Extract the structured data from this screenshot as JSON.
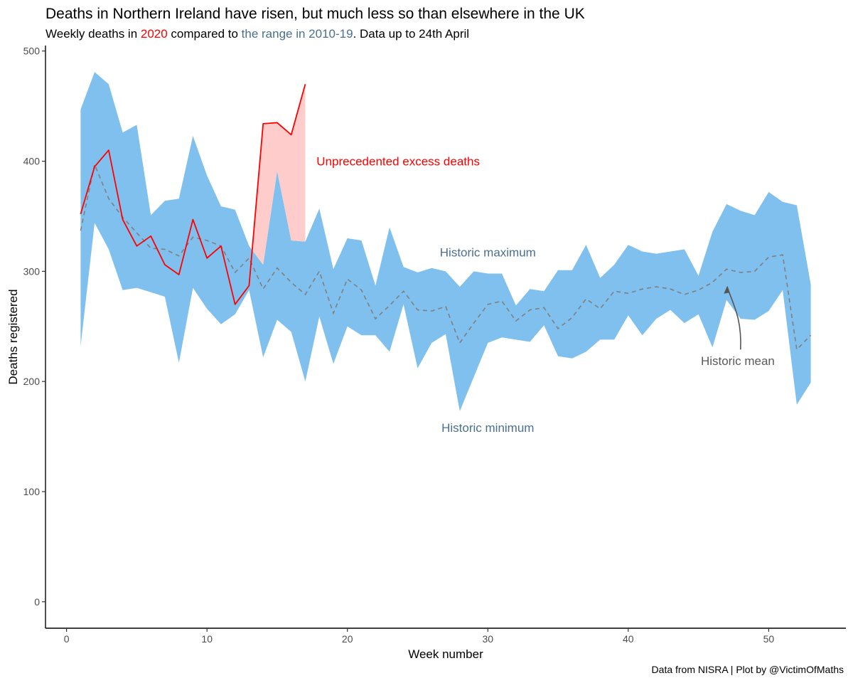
{
  "header": {
    "title": "Deaths in Northern Ireland have risen, but much less so than elsewhere in the UK",
    "subtitle_pre": "Weekly deaths in ",
    "subtitle_year": "2020",
    "subtitle_mid": " compared to ",
    "subtitle_range": "the range in 2010-19",
    "subtitle_post": ". Data up to 24th April"
  },
  "caption": "Data from NISRA | Plot by @VictimOfMaths",
  "colors": {
    "year_2020": "#ff0000",
    "range_text": "#4a6f8f",
    "band": "#80c0ee",
    "excess": "#ffcccc",
    "mean_line": "#7f7f7f",
    "annotation_grey": "#595959"
  },
  "chart_data": {
    "type": "area",
    "title": "Deaths in Northern Ireland have risen, but much less so than elsewhere in the UK",
    "xlabel": "Week number",
    "ylabel": "Deaths registered",
    "xlim": [
      -1.5,
      55.5
    ],
    "ylim": [
      -24,
      505
    ],
    "x_ticks": [
      0,
      10,
      20,
      30,
      40,
      50
    ],
    "y_ticks": [
      0,
      100,
      200,
      300,
      400,
      500
    ],
    "grid": false,
    "historic_range": {
      "name": "Range 2010-19",
      "weeks": [
        1,
        2,
        3,
        4,
        5,
        6,
        7,
        8,
        9,
        10,
        11,
        12,
        13,
        14,
        15,
        16,
        17,
        18,
        19,
        20,
        21,
        22,
        23,
        24,
        25,
        26,
        27,
        28,
        29,
        30,
        31,
        32,
        33,
        34,
        35,
        36,
        37,
        38,
        39,
        40,
        41,
        42,
        43,
        44,
        45,
        46,
        47,
        48,
        49,
        50,
        51,
        52,
        53
      ],
      "max": [
        447,
        481,
        470,
        426,
        433,
        351,
        364,
        366,
        423,
        387,
        359,
        356,
        323,
        306,
        391,
        328,
        327,
        357,
        302,
        330,
        328,
        287,
        340,
        304,
        299,
        303,
        300,
        286,
        300,
        298,
        298,
        269,
        284,
        282,
        301,
        301,
        324,
        294,
        306,
        324,
        318,
        316,
        318,
        320,
        296,
        336,
        361,
        355,
        351,
        372,
        363,
        360,
        288
      ],
      "min": [
        232,
        344,
        320,
        283,
        285,
        281,
        277,
        217,
        285,
        266,
        252,
        261,
        283,
        222,
        256,
        245,
        200,
        259,
        216,
        250,
        242,
        242,
        227,
        270,
        212,
        235,
        243,
        173,
        204,
        235,
        240,
        238,
        236,
        251,
        223,
        221,
        227,
        238,
        238,
        260,
        242,
        257,
        265,
        253,
        261,
        231,
        274,
        257,
        256,
        264,
        283,
        179,
        199
      ]
    },
    "mean_2010_19": {
      "name": "Historic mean",
      "weeks": [
        1,
        2,
        3,
        4,
        5,
        6,
        7,
        8,
        9,
        10,
        11,
        12,
        13,
        14,
        15,
        16,
        17,
        18,
        19,
        20,
        21,
        22,
        23,
        24,
        25,
        26,
        27,
        28,
        29,
        30,
        31,
        32,
        33,
        34,
        35,
        36,
        37,
        38,
        39,
        40,
        41,
        42,
        43,
        44,
        45,
        46,
        47,
        48,
        49,
        50,
        51,
        52,
        53
      ],
      "values": [
        337,
        397,
        366,
        349,
        335,
        321,
        320,
        314,
        331,
        328,
        323,
        299,
        312,
        284,
        303,
        290,
        279,
        300,
        262,
        293,
        283,
        257,
        269,
        282,
        265,
        264,
        268,
        235,
        253,
        270,
        273,
        255,
        265,
        267,
        248,
        258,
        275,
        266,
        282,
        280,
        284,
        286,
        284,
        279,
        283,
        290,
        302,
        299,
        300,
        313,
        315,
        229,
        242
      ]
    },
    "deaths_2020": {
      "name": "2020",
      "weeks": [
        1,
        2,
        3,
        4,
        5,
        6,
        7,
        8,
        9,
        10,
        11,
        12,
        13,
        14,
        15,
        16,
        17
      ],
      "values": [
        352,
        395,
        410,
        347,
        323,
        332,
        306,
        297,
        347,
        312,
        323,
        270,
        287,
        434,
        435,
        424,
        470
      ]
    },
    "annotations": {
      "excess": "Unprecedented excess deaths",
      "max": "Historic maximum",
      "min": "Historic minimum",
      "mean": "Historic mean"
    }
  }
}
